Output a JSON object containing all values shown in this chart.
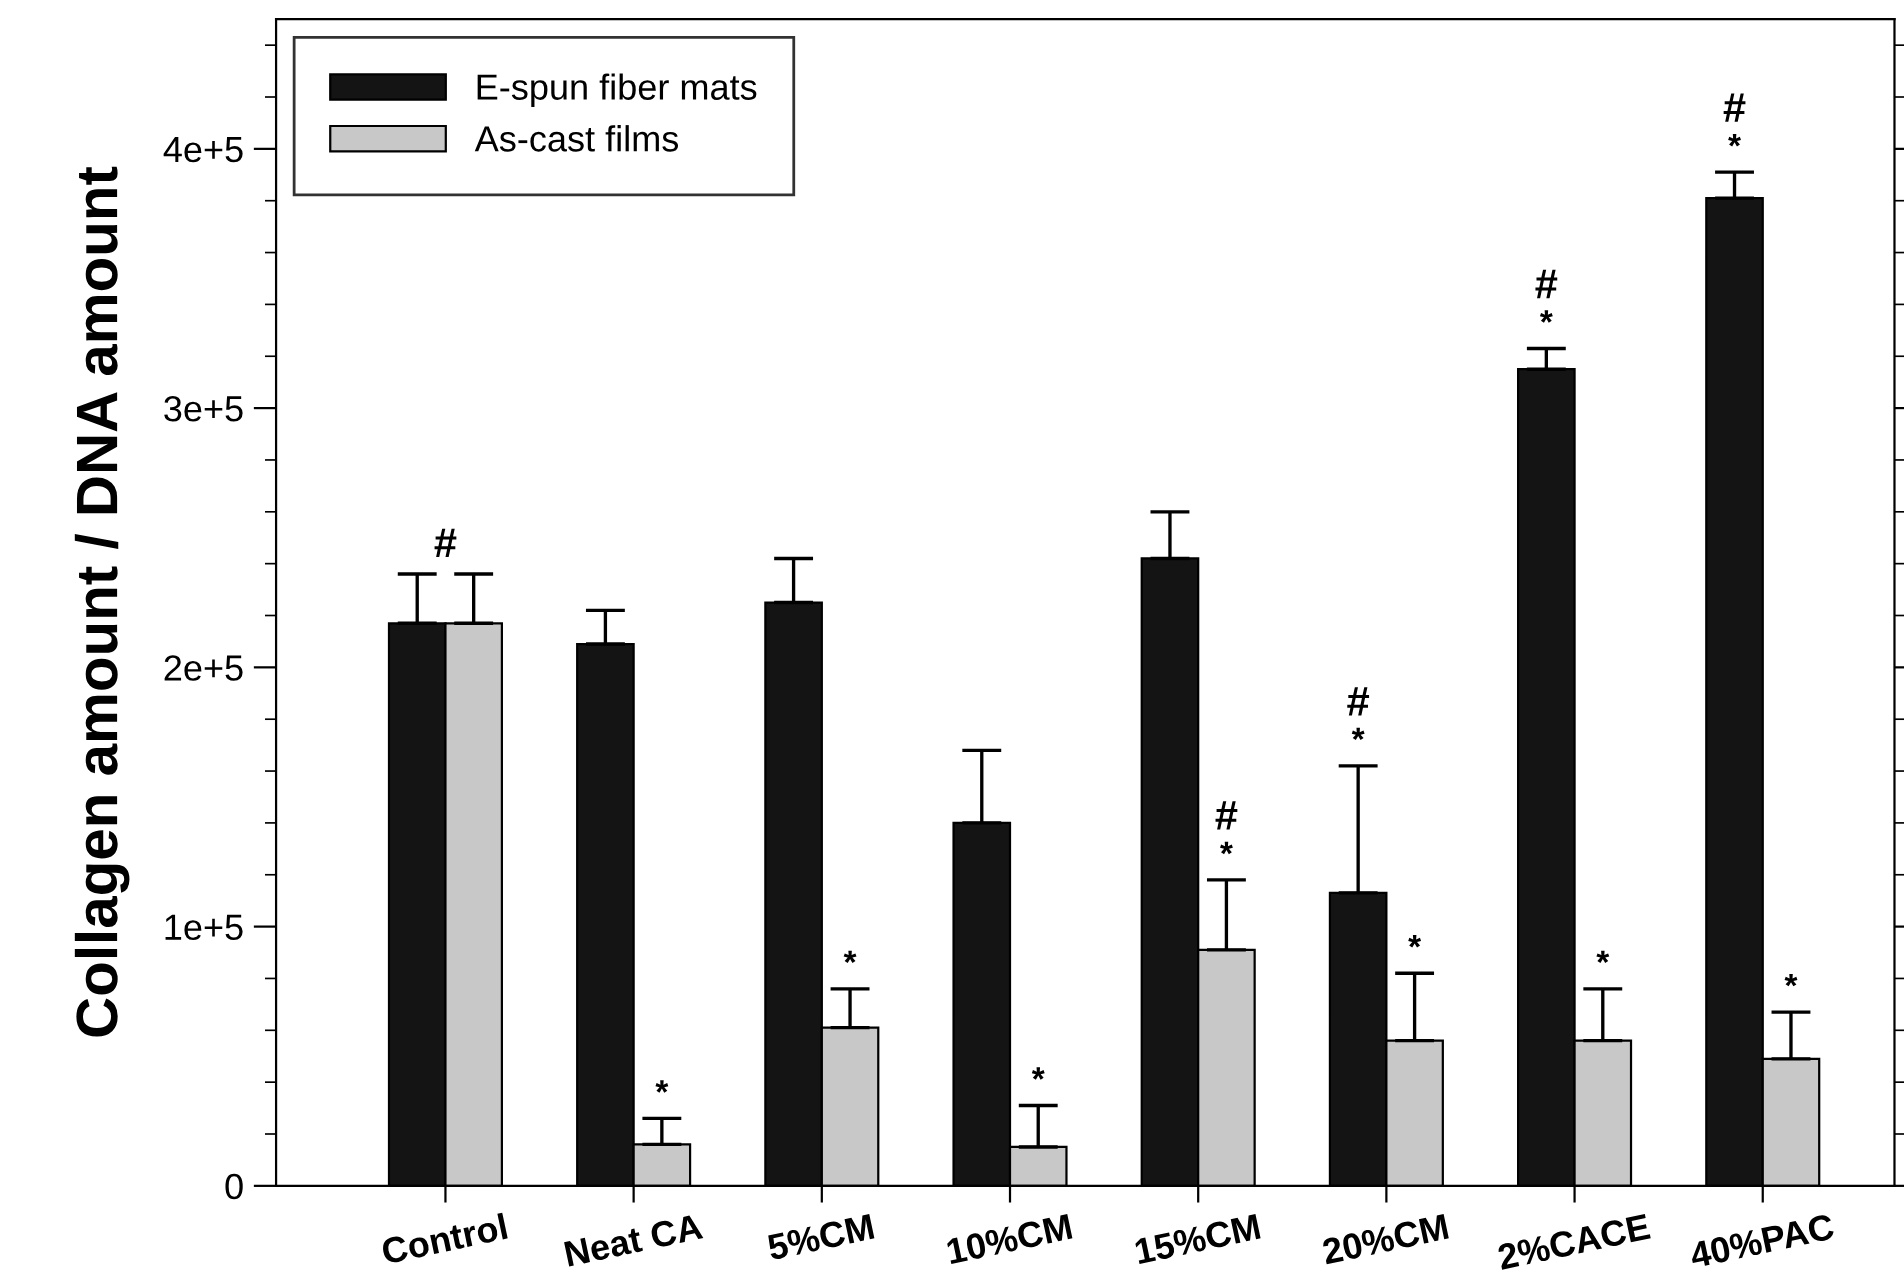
{
  "chart_data": {
    "type": "bar",
    "ylabel": "Collagen amount / DNA amount",
    "categories": [
      "Control",
      "Neat CA",
      "5%CM",
      "10%CM",
      "15%CM",
      "20%CM",
      "2%CACE",
      "40%PAC"
    ],
    "series": [
      {
        "name": "E-spun fiber mats",
        "color": "#141414",
        "values": [
          217000,
          209000,
          225000,
          140000,
          242000,
          113000,
          315000,
          381000
        ],
        "errors": [
          19000,
          13000,
          17000,
          28000,
          18000,
          49000,
          8000,
          10000
        ]
      },
      {
        "name": "As-cast films",
        "color": "#c8c8c8",
        "values": [
          217000,
          16000,
          61000,
          15000,
          91000,
          56000,
          56000,
          49000
        ],
        "errors": [
          19000,
          10000,
          15000,
          16000,
          27000,
          26000,
          20000,
          18000
        ]
      }
    ],
    "ylim": [
      0,
      450000
    ],
    "yticks": [
      {
        "value": 0,
        "label": "0"
      },
      {
        "value": 20000,
        "label": null
      },
      {
        "value": 40000,
        "label": null
      },
      {
        "value": 60000,
        "label": null
      },
      {
        "value": 80000,
        "label": null
      },
      {
        "value": 100000,
        "label": "1e+5"
      },
      {
        "value": 120000,
        "label": null
      },
      {
        "value": 140000,
        "label": null
      },
      {
        "value": 160000,
        "label": null
      },
      {
        "value": 180000,
        "label": null
      },
      {
        "value": 200000,
        "label": "2e+5"
      },
      {
        "value": 220000,
        "label": null
      },
      {
        "value": 240000,
        "label": null
      },
      {
        "value": 260000,
        "label": null
      },
      {
        "value": 280000,
        "label": null
      },
      {
        "value": 300000,
        "label": "3e+5"
      },
      {
        "value": 320000,
        "label": null
      },
      {
        "value": 340000,
        "label": null
      },
      {
        "value": 360000,
        "label": null
      },
      {
        "value": 380000,
        "label": null
      },
      {
        "value": 400000,
        "label": "4e+5"
      },
      {
        "value": 420000,
        "label": null
      },
      {
        "value": 440000,
        "label": null
      }
    ],
    "annotations": [
      {
        "text": "#",
        "x": "Control",
        "y": 236000
      },
      {
        "text": "*",
        "x": "Neat CA",
        "y": 26000
      },
      {
        "text": "*",
        "x": "5%CM",
        "y": 76000
      },
      {
        "text": "*",
        "x": "10%CM",
        "y": 31000
      },
      {
        "text": "*",
        "x": "15%CM",
        "y": 118000
      },
      {
        "text": "#",
        "x": "15%CM",
        "y": 118000
      },
      {
        "text": "*",
        "x": "20%CM",
        "y": 162000
      },
      {
        "text": "#",
        "x": "20%CM",
        "y": 162000
      },
      {
        "text": "*",
        "x": "20%CM",
        "y": 82000
      },
      {
        "text": "*",
        "x": "2%CACE",
        "y": 323000
      },
      {
        "text": "#",
        "x": "2%CACE",
        "y": 323000
      },
      {
        "text": "*",
        "x": "2%CACE",
        "y": 76000
      },
      {
        "text": "*",
        "x": "40%PAC",
        "y": 391000
      },
      {
        "text": "#",
        "x": "40%PAC",
        "y": 391000
      },
      {
        "text": "*",
        "x": "40%PAC",
        "y": 67000
      }
    ],
    "grid": false,
    "legend": "top left"
  }
}
